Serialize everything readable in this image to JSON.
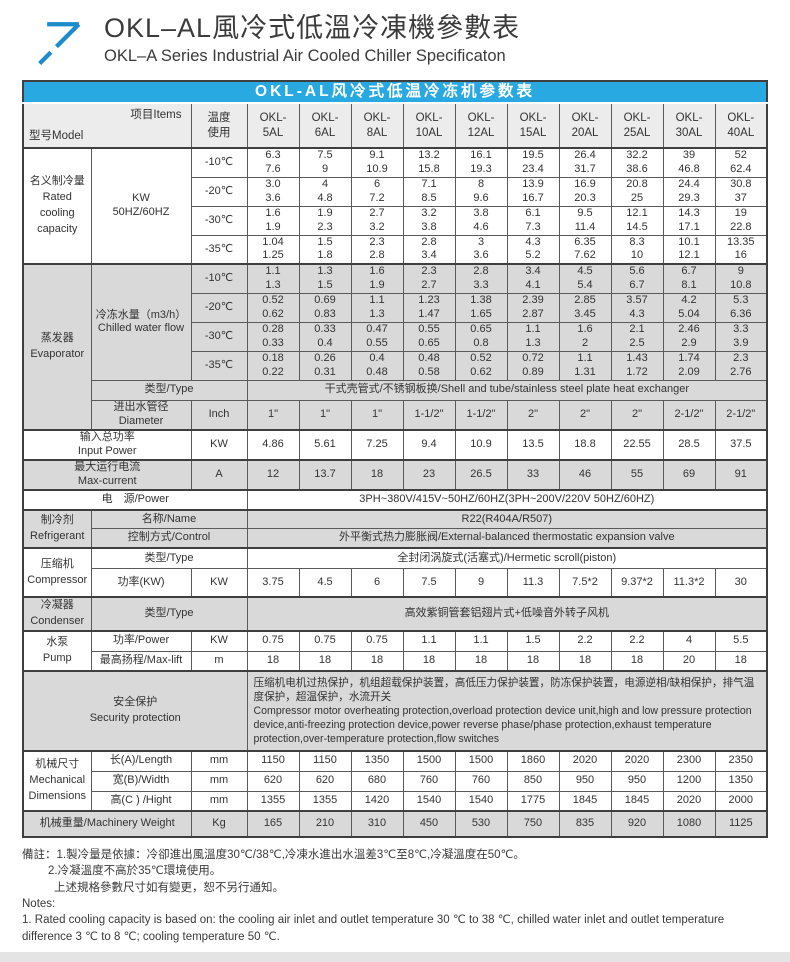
{
  "header": {
    "title_zh": "OKL–AL風冷式低溫冷凍機參數表",
    "title_en": "OKL–A Series Industrial Air Cooled Chiller Specificaton",
    "logo_icon": "arrow-up-right-icon",
    "accent_blue": "#29a9e1",
    "logo_blue": "#1b8bc9"
  },
  "table": {
    "banner_title": "OKL-AL风冷式低温冷冻机参数表",
    "corner_model": "型号Model",
    "corner_items": "项目Items",
    "temp_usage_header": "温度\n使用",
    "model_headers": [
      "OKL-\n5AL",
      "OKL-\n6AL",
      "OKL-\n8AL",
      "OKL-\n10AL",
      "OKL-\n12AL",
      "OKL-\n15AL",
      "OKL-\n20AL",
      "OKL-\n25AL",
      "OKL-\n30AL",
      "OKL-\n40AL"
    ],
    "shade_gray": "#d9d9d9",
    "sections": {
      "cooling": {
        "label": "名义制冷量\nRated\ncooling\ncapacity",
        "item": "KW\n50HZ/60HZ",
        "rows": [
          {
            "temp": "-10℃",
            "values": [
              "6.3\n7.6",
              "7.5\n9",
              "9.1\n10.9",
              "13.2\n15.8",
              "16.1\n19.3",
              "19.5\n23.4",
              "26.4\n31.7",
              "32.2\n38.6",
              "39\n46.8",
              "52\n62.4"
            ]
          },
          {
            "temp": "-20℃",
            "values": [
              "3.0\n3.6",
              "4\n4.8",
              "6\n7.2",
              "7.1\n8.5",
              "8\n9.6",
              "13.9\n16.7",
              "16.9\n20.3",
              "20.8\n25",
              "24.4\n29.3",
              "30.8\n37"
            ]
          },
          {
            "temp": "-30℃",
            "values": [
              "1.6\n1.9",
              "1.9\n2.3",
              "2.7\n3.2",
              "3.2\n3.8",
              "3.8\n4.6",
              "6.1\n7.3",
              "9.5\n11.4",
              "12.1\n14.5",
              "14.3\n17.1",
              "19\n22.8"
            ]
          },
          {
            "temp": "-35℃",
            "values": [
              "1.04\n1.25",
              "1.5\n1.8",
              "2.3\n2.8",
              "2.8\n3.4",
              "3\n3.6",
              "4.3\n5.2",
              "6.35\n7.62",
              "8.3\n10",
              "10.1\n12.1",
              "13.35\n16"
            ]
          }
        ]
      },
      "evaporator": {
        "label": "蒸发器\nEvaporator",
        "item": "冷冻水量（m3/h）\nChilled water flow",
        "rows": [
          {
            "temp": "-10℃",
            "values": [
              "1.1\n1.3",
              "1.3\n1.5",
              "1.6\n1.9",
              "2.3\n2.7",
              "2.8\n3.3",
              "3.4\n4.1",
              "4.5\n5.4",
              "5.6\n6.7",
              "6.7\n8.1",
              "9\n10.8"
            ]
          },
          {
            "temp": "-20℃",
            "values": [
              "0.52\n0.62",
              "0.69\n0.83",
              "1.1\n1.3",
              "1.23\n1.47",
              "1.38\n1.65",
              "2.39\n2.87",
              "2.85\n3.45",
              "3.57\n4.3",
              "4.2\n5.04",
              "5.3\n6.36"
            ]
          },
          {
            "temp": "-30℃",
            "values": [
              "0.28\n0.33",
              "0.33\n0.4",
              "0.47\n0.55",
              "0.55\n0.65",
              "0.65\n0.8",
              "1.1\n1.3",
              "1.6\n2",
              "2.1\n2.5",
              "2.46\n2.9",
              "3.3\n3.9"
            ]
          },
          {
            "temp": "-35℃",
            "values": [
              "0.18\n0.22",
              "0.26\n0.31",
              "0.4\n0.48",
              "0.48\n0.58",
              "0.52\n0.62",
              "0.72\n0.89",
              "1.1\n1.31",
              "1.43\n1.72",
              "1.74\n2.09",
              "2.3\n2.76"
            ]
          }
        ],
        "type_label": "类型/Type",
        "type_value": "干式壳管式/不锈钢板换/Shell and tube/stainless steel plate heat exchanger",
        "diameter_label": "进出水管径\nDiameter",
        "diameter_unit": "Inch",
        "diameter_values": [
          "1\"",
          "1\"",
          "1\"",
          "1-1/2\"",
          "1-1/2\"",
          "2\"",
          "2\"",
          "2\"",
          "2-1/2\"",
          "2-1/2\""
        ]
      },
      "input_power": {
        "label": "输入总功率\nInput Power",
        "unit": "KW",
        "values": [
          "4.86",
          "5.61",
          "7.25",
          "9.4",
          "10.9",
          "13.5",
          "18.8",
          "22.55",
          "28.5",
          "37.5"
        ]
      },
      "max_current": {
        "label": "最大运行电流\nMax-current",
        "unit": "A",
        "values": [
          "12",
          "13.7",
          "18",
          "23",
          "26.5",
          "33",
          "46",
          "55",
          "69",
          "91"
        ]
      },
      "power_supply": {
        "label": "电　源/Power",
        "value": "3PH~380V/415V~50HZ/60HZ(3PH~200V/220V 50HZ/60HZ)"
      },
      "refrigerant": {
        "label": "制冷剂\nRefrigerant",
        "name_label": "名称/Name",
        "name_value": "R22(R404A/R507)",
        "control_label": "控制方式/Control",
        "control_value": "外平衡式热力膨胀阀/External-balanced thermostatic expansion valve"
      },
      "compressor": {
        "label": "压缩机\nCompressor",
        "type_label": "类型/Type",
        "type_value": "全封闭涡旋式(活塞式)/Hermetic scroll(piston)",
        "power_label": "功率(KW)",
        "power_unit": "KW",
        "power_values": [
          "3.75",
          "4.5",
          "6",
          "7.5",
          "9",
          "11.3",
          "7.5*2",
          "9.37*2",
          "11.3*2",
          "30"
        ]
      },
      "condenser": {
        "label": "冷凝器\nCondenser",
        "type_label": "类型/Type",
        "type_value": "高效紫铜管套铝翅片式+低噪音外转子风机"
      },
      "pump": {
        "label": "水泵\nPump",
        "power_label": "功率/Power",
        "power_unit": "KW",
        "power_values": [
          "0.75",
          "0.75",
          "0.75",
          "1.1",
          "1.1",
          "1.5",
          "2.2",
          "2.2",
          "4",
          "5.5"
        ],
        "lift_label": "最高扬程/Max-lift",
        "lift_unit": "m",
        "lift_values": [
          "18",
          "18",
          "18",
          "18",
          "18",
          "18",
          "18",
          "18",
          "20",
          "18"
        ]
      },
      "security": {
        "label": "安全保护\nSecurity protection",
        "value": "压缩机电机过热保护，机组超载保护装置，高低压力保护装置，防冻保护装置，电源逆相/缺相保护，排气温度保护，超温保护，水流开关\nCompressor motor overheating protection,overload protection device unit,high and low pressure protection device,anti-freezing protection device,power reverse phase/phase protection,exhaust temperature protection,over-temperature protection,flow switches"
      },
      "dimensions": {
        "label": "机械尺寸\nMechanical\nDimensions",
        "rows": [
          {
            "item": "长(A)/Length",
            "unit": "mm",
            "values": [
              "1150",
              "1150",
              "1350",
              "1500",
              "1500",
              "1860",
              "2020",
              "2020",
              "2300",
              "2350"
            ]
          },
          {
            "item": "宽(B)/Width",
            "unit": "mm",
            "values": [
              "620",
              "620",
              "680",
              "760",
              "760",
              "850",
              "950",
              "950",
              "1200",
              "1350"
            ]
          },
          {
            "item": "高(C ) /Hight",
            "unit": "mm",
            "values": [
              "1355",
              "1355",
              "1420",
              "1540",
              "1540",
              "1775",
              "1845",
              "1845",
              "2020",
              "2000"
            ]
          }
        ]
      },
      "weight": {
        "label": "机械重量/Machinery Weight",
        "unit": "Kg",
        "values": [
          "165",
          "210",
          "310",
          "450",
          "530",
          "750",
          "835",
          "920",
          "1080",
          "1125"
        ]
      }
    }
  },
  "notes": {
    "zh1": "備註：1.製冷量是依據：冷卻進出風溫度30℃/38℃,冷凍水進出水溫差3℃至8℃,冷凝溫度在50℃。",
    "zh2": "2.冷凝溫度不高於35℃環境使用。",
    "zh3": "上述規格參數尺寸如有變更，恕不另行通知。",
    "en_title": "Notes:",
    "en1": "1. Rated cooling capacity is based on: the cooling air inlet and outlet temperature 30 ℃ to 38 ℃, chilled water inlet and outlet temperature difference 3 ℃ to 8 ℃; cooling temperature 50 ℃."
  }
}
